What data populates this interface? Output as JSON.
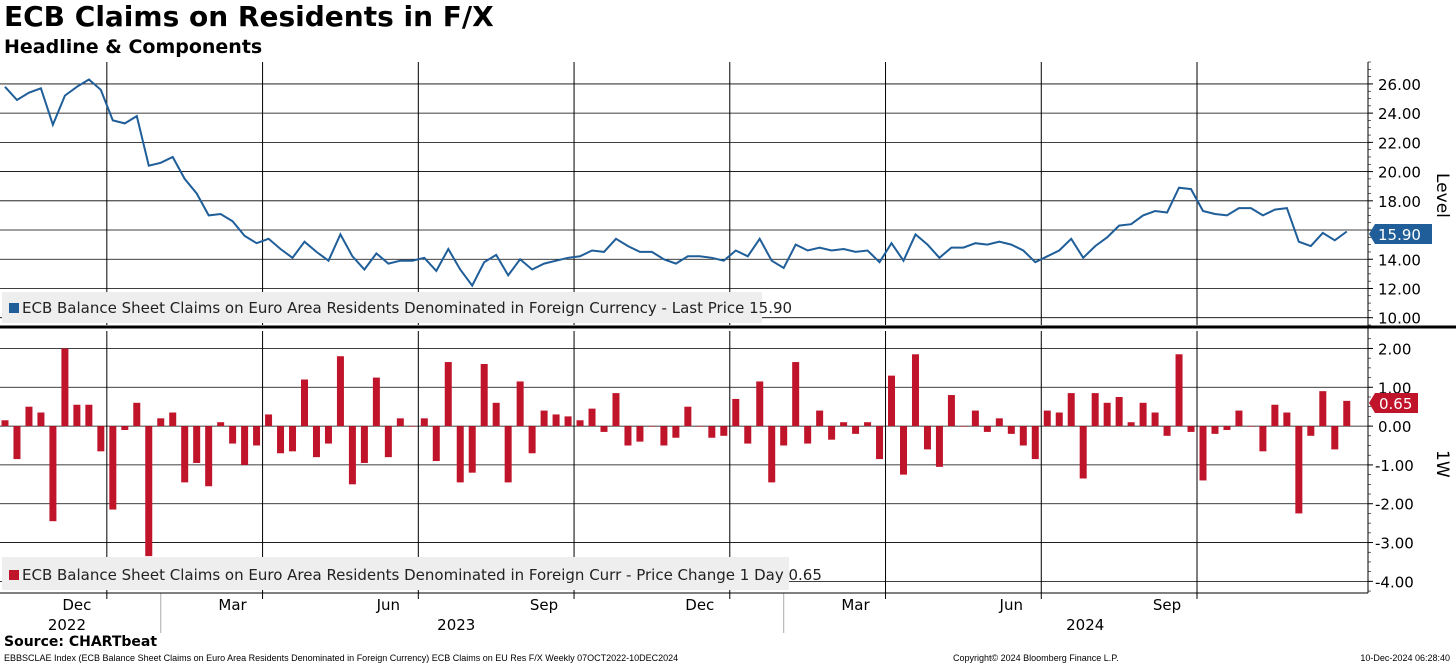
{
  "header": {
    "title": "ECB Claims on Residents in F/X",
    "subtitle": "Headline & Components"
  },
  "footer": {
    "source": "Source: CHARTbeat",
    "description": "EBBSCLAE Index (ECB Balance Sheet Claims on Euro Area Residents Denominated in Foreign Currency) ECB Claims on EU Res F/X  Weekly 07OCT2022-10DEC2024",
    "copyright": "Copyright© 2024 Bloomberg Finance L.P.",
    "timestamp": "10-Dec-2024 06:28:40"
  },
  "colors": {
    "level_line": "#1f5e99",
    "change_bar": "#c0142a",
    "grid": "#000000"
  },
  "chart_data": [
    {
      "type": "line",
      "panel": "top",
      "axis_title": "Level",
      "ylim": [
        9.5,
        27.5
      ],
      "yticks": [
        "10.00",
        "12.00",
        "14.00",
        "16.00",
        "18.00",
        "20.00",
        "22.00",
        "24.00",
        "26.00"
      ],
      "last_value_label": "15.90",
      "legend_text": "ECB Balance Sheet Claims on Euro Area Residents Denominated in Foreign Currency - Last Price 15.90",
      "series": [
        {
          "name": "ECB Balance Sheet Claims on Euro Area Residents Denominated in Foreign Currency",
          "values": [
            25.8,
            24.9,
            25.4,
            25.7,
            23.2,
            25.2,
            25.8,
            26.3,
            25.6,
            23.5,
            23.3,
            23.8,
            20.4,
            20.6,
            21.0,
            19.5,
            18.5,
            17.0,
            17.1,
            16.6,
            15.6,
            15.1,
            15.4,
            14.7,
            14.1,
            15.2,
            14.5,
            13.9,
            15.7,
            14.2,
            13.3,
            14.4,
            13.7,
            13.9,
            13.9,
            14.1,
            13.2,
            14.7,
            13.3,
            12.2,
            13.8,
            14.3,
            12.9,
            14.0,
            13.3,
            13.7,
            13.9,
            14.1,
            14.2,
            14.6,
            14.5,
            15.4,
            14.9,
            14.5,
            14.5,
            14.0,
            13.7,
            14.2,
            14.2,
            14.1,
            13.9,
            14.6,
            14.2,
            15.4,
            13.9,
            13.4,
            15.0,
            14.6,
            14.8,
            14.6,
            14.7,
            14.5,
            14.6,
            13.8,
            15.1,
            13.9,
            15.7,
            15.0,
            14.1,
            14.8,
            14.8,
            15.1,
            15.0,
            15.2,
            15.0,
            14.6,
            13.8,
            14.2,
            14.6,
            15.4,
            14.1,
            14.9,
            15.5,
            16.3,
            16.4,
            17.0,
            17.3,
            17.2,
            18.9,
            18.8,
            17.3,
            17.1,
            17.0,
            17.5,
            17.5,
            17.0,
            17.4,
            17.5,
            15.2,
            14.9,
            15.8,
            15.3,
            15.9
          ]
        }
      ]
    },
    {
      "type": "bar",
      "panel": "bottom",
      "axis_title": "1W",
      "ylim": [
        -4.3,
        2.45
      ],
      "yticks": [
        "2.00",
        "1.00",
        "0.00",
        "-1.00",
        "-2.00",
        "-3.00",
        "-4.00"
      ],
      "last_value_label": "0.65",
      "legend_text": "ECB Balance Sheet Claims on Euro Area Residents Denominated in Foreign Curr - Price Change 1 Day 0.65",
      "series": [
        {
          "name": "ECB Balance Sheet Claims on Euro Area Residents Denominated in Foreign Curr - Price Change 1 Day",
          "values": [
            0.15,
            -0.85,
            0.5,
            0.35,
            -2.45,
            2.0,
            0.55,
            0.55,
            -0.65,
            -2.15,
            -0.1,
            0.6,
            -3.35,
            0.2,
            0.35,
            -1.45,
            -0.95,
            -1.55,
            0.1,
            -0.45,
            -1.0,
            -0.5,
            0.3,
            -0.7,
            -0.65,
            1.2,
            -0.8,
            -0.45,
            1.8,
            -1.5,
            -0.95,
            1.25,
            -0.8,
            0.2,
            0.0,
            0.2,
            -0.9,
            1.65,
            -1.45,
            -1.2,
            1.6,
            0.6,
            -1.45,
            1.15,
            -0.7,
            0.4,
            0.3,
            0.25,
            0.15,
            0.45,
            -0.15,
            0.85,
            -0.5,
            -0.4,
            0.0,
            -0.5,
            -0.3,
            0.5,
            0.0,
            -0.3,
            -0.25,
            0.7,
            -0.45,
            1.15,
            -1.45,
            -0.5,
            1.65,
            -0.45,
            0.4,
            -0.35,
            0.1,
            -0.2,
            0.1,
            -0.85,
            1.3,
            -1.25,
            1.85,
            -0.6,
            -1.05,
            0.8,
            0.0,
            0.4,
            -0.15,
            0.2,
            -0.2,
            -0.5,
            -0.85,
            0.4,
            0.35,
            0.85,
            -1.35,
            0.85,
            0.6,
            0.75,
            0.1,
            0.6,
            0.35,
            -0.25,
            1.85,
            -0.15,
            -1.4,
            -0.2,
            -0.1,
            0.4,
            0.0,
            -0.65,
            0.55,
            0.35,
            -2.25,
            -0.25,
            0.9,
            -0.6,
            0.65
          ]
        }
      ]
    }
  ],
  "x_axis": {
    "months": [
      {
        "label": "Dec",
        "week": 9
      },
      {
        "label": "Mar",
        "week": 22
      },
      {
        "label": "Jun",
        "week": 35
      },
      {
        "label": "Sep",
        "week": 48
      },
      {
        "label": "Dec",
        "week": 61
      },
      {
        "label": "Mar",
        "week": 74
      },
      {
        "label": "Jun",
        "week": 87
      },
      {
        "label": "Sep",
        "week": 100
      }
    ],
    "years": [
      {
        "label": "2022",
        "week": 4.5
      },
      {
        "label": "2023",
        "week": 37
      },
      {
        "label": "2024",
        "week": 89.5
      }
    ],
    "year_boundaries": [
      12.5,
      64.5
    ]
  }
}
